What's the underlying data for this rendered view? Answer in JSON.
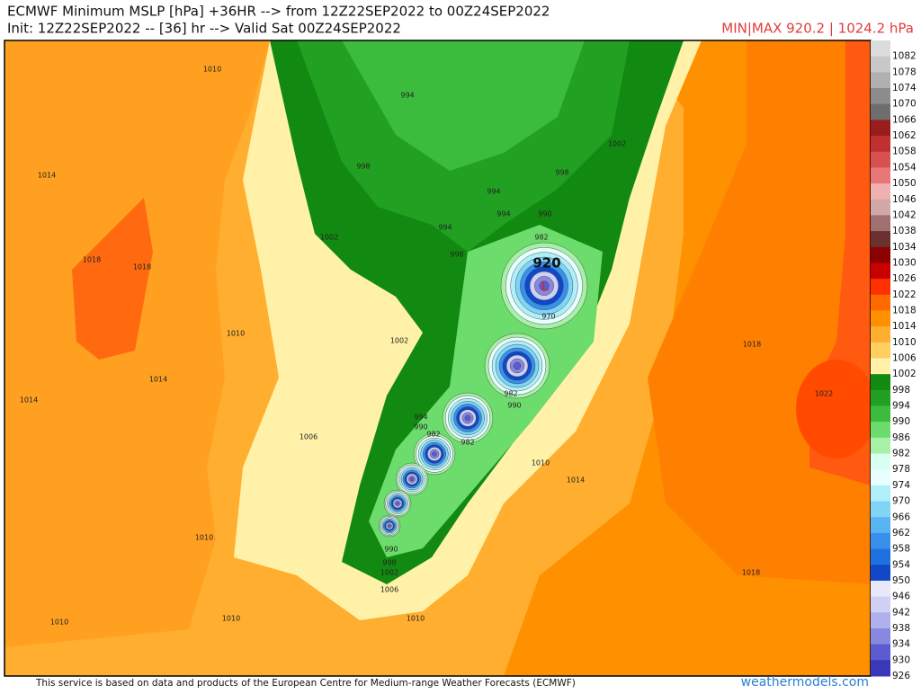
{
  "header": {
    "title": "ECMWF Minimum MSLP [hPa] +36HR --> from 12Z22SEP2022 to 00Z24SEP2022",
    "subtitle": "Init: 12Z22SEP2022 -- [36] hr --> Valid Sat 00Z24SEP2022",
    "minmax": "MIN|MAX 920.2 | 1024.2 hPa"
  },
  "colorbar": {
    "levels": [
      1082,
      1078,
      1074,
      1070,
      1066,
      1062,
      1058,
      1054,
      1050,
      1046,
      1042,
      1038,
      1034,
      1030,
      1026,
      1022,
      1018,
      1014,
      1010,
      1006,
      1002,
      998,
      994,
      990,
      986,
      982,
      978,
      974,
      970,
      966,
      962,
      958,
      954,
      950,
      946,
      942,
      938,
      934,
      930,
      926
    ],
    "colors": [
      "#dcdcdc",
      "#c8c8c8",
      "#b0b0b0",
      "#8c8c8c",
      "#6e6e6e",
      "#9b1c1c",
      "#c03030",
      "#d85050",
      "#e87878",
      "#f0b0b0",
      "#d0a8a8",
      "#a07070",
      "#6b3030",
      "#8b0000",
      "#c80000",
      "#ff3000",
      "#ff6a00",
      "#ff9000",
      "#ffae30",
      "#ffcf60",
      "#fff2a8",
      "#128a12",
      "#22a022",
      "#3cbc3c",
      "#6cdc6c",
      "#a8f0a8",
      "#d8fff0",
      "#e8ffff",
      "#b0eef8",
      "#80d4f4",
      "#58b4f0",
      "#3890ec",
      "#2070e0",
      "#1048c8",
      "#e8e8fa",
      "#d0d0f4",
      "#b0b0ec",
      "#8888e0",
      "#5c5cd0",
      "#3838b8"
    ]
  },
  "map": {
    "center_value": "920",
    "low_marker": "L",
    "contour_labels": [
      1010,
      1014,
      1018,
      1018,
      1010,
      1014,
      1014,
      1006,
      1002,
      1002,
      998,
      994,
      998,
      994,
      994,
      990,
      982,
      970,
      982,
      990,
      982,
      994,
      990,
      982,
      990,
      998,
      1002,
      1006,
      1010,
      1014,
      1018,
      1022,
      1018,
      1010,
      1010,
      1010,
      1010,
      1002,
      998,
      994
    ]
  },
  "footer": {
    "credit": "This service is based on data and products of the European Centre for Medium-range Weather Forecasts (ECMWF)",
    "brand": "weathermodels.com"
  }
}
